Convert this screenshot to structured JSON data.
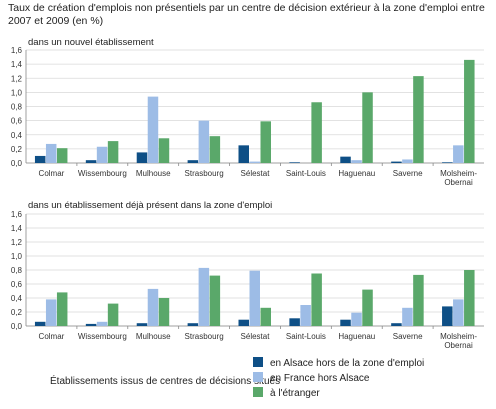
{
  "title": "Taux de création d'emplois non présentiels par un centre de décision extérieur à la zone d'emploi entre 2007 et 2009 (en %)",
  "legend_note": "Établissements issus de centres de décisions situés",
  "colors": {
    "alsace": "#0e4f86",
    "france": "#9dbce6",
    "etranger": "#5aa86a"
  },
  "chart_data": [
    {
      "type": "bar",
      "subtitle": "dans un nouvel établissement",
      "categories": [
        "Colmar",
        "Wissembourg",
        "Mulhouse",
        "Strasbourg",
        "Sélestat",
        "Saint-Louis",
        "Haguenau",
        "Saverne",
        "Molsheim-Obernai"
      ],
      "ylim": [
        0,
        1.6
      ],
      "yticks": [
        "0,0",
        "0,2",
        "0,4",
        "0,6",
        "0,8",
        "1,0",
        "1,2",
        "1,4",
        "1,6"
      ],
      "series": [
        {
          "name": "en Alsace hors de la zone d'emploi",
          "values": [
            0.1,
            0.04,
            0.15,
            0.04,
            0.25,
            0.01,
            0.09,
            0.02,
            0.01
          ]
        },
        {
          "name": "en France hors Alsace",
          "values": [
            0.27,
            0.23,
            0.94,
            0.6,
            0.02,
            0.0,
            0.04,
            0.05,
            0.25
          ]
        },
        {
          "name": "à l'étranger",
          "values": [
            0.21,
            0.31,
            0.35,
            0.38,
            0.59,
            0.86,
            1.0,
            1.23,
            1.46
          ]
        }
      ]
    },
    {
      "type": "bar",
      "subtitle": "dans un établissement déjà présent dans la zone d'emploi",
      "categories": [
        "Colmar",
        "Wissembourg",
        "Mulhouse",
        "Strasbourg",
        "Sélestat",
        "Saint-Louis",
        "Haguenau",
        "Saverne",
        "Molsheim-Obernai"
      ],
      "ylim": [
        0,
        1.6
      ],
      "yticks": [
        "0,0",
        "0,2",
        "0,4",
        "0,6",
        "0,8",
        "1,0",
        "1,2",
        "1,4",
        "1,6"
      ],
      "series": [
        {
          "name": "en Alsace hors de la zone d'emploi",
          "values": [
            0.06,
            0.03,
            0.04,
            0.04,
            0.09,
            0.11,
            0.09,
            0.04,
            0.28
          ]
        },
        {
          "name": "en France hors Alsace",
          "values": [
            0.38,
            0.06,
            0.53,
            0.83,
            0.79,
            0.3,
            0.19,
            0.26,
            0.38
          ]
        },
        {
          "name": "à l'étranger",
          "values": [
            0.48,
            0.32,
            0.4,
            0.72,
            0.26,
            0.75,
            0.52,
            0.73,
            0.8
          ]
        }
      ]
    }
  ]
}
